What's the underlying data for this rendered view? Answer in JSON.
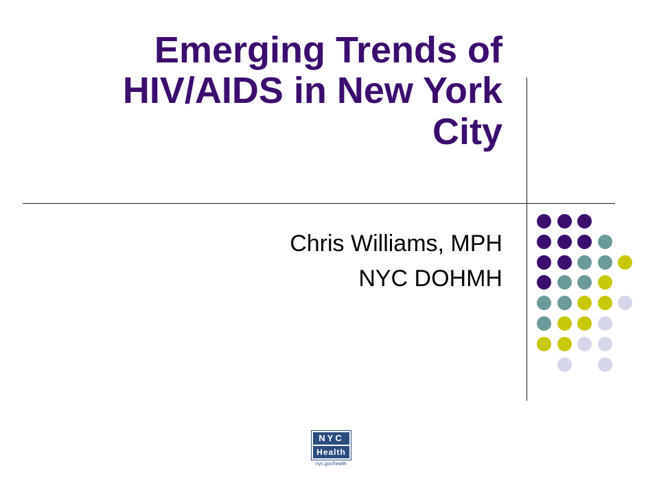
{
  "slide": {
    "title_lines": [
      "Emerging Trends of",
      "HIV/AIDS in New York",
      "City"
    ],
    "subtitle_lines": [
      "Chris Williams, MPH",
      "NYC DOHMH"
    ]
  },
  "logo": {
    "top": "NYC",
    "bottom": "Health",
    "url": "nyc.gov/health"
  },
  "colors": {
    "title": "#3b0e6e",
    "purple": "#3b0e6e",
    "teal": "#6b9a9a",
    "lime": "#c8c80a",
    "lavender": "#d6d6ea",
    "logo_blue": "#2b4c7e"
  },
  "dot_grid": [
    [
      "purple",
      "purple",
      "purple",
      "",
      ""
    ],
    [
      "purple",
      "purple",
      "purple",
      "teal",
      ""
    ],
    [
      "purple",
      "purple",
      "teal",
      "teal",
      "lime"
    ],
    [
      "purple",
      "teal",
      "teal",
      "lime",
      ""
    ],
    [
      "teal",
      "teal",
      "lime",
      "lime",
      "lavender"
    ],
    [
      "teal",
      "lime",
      "lime",
      "lavender",
      ""
    ],
    [
      "lime",
      "lime",
      "lavender",
      "lavender",
      ""
    ],
    [
      "",
      "lavender",
      "",
      "lavender",
      ""
    ]
  ]
}
